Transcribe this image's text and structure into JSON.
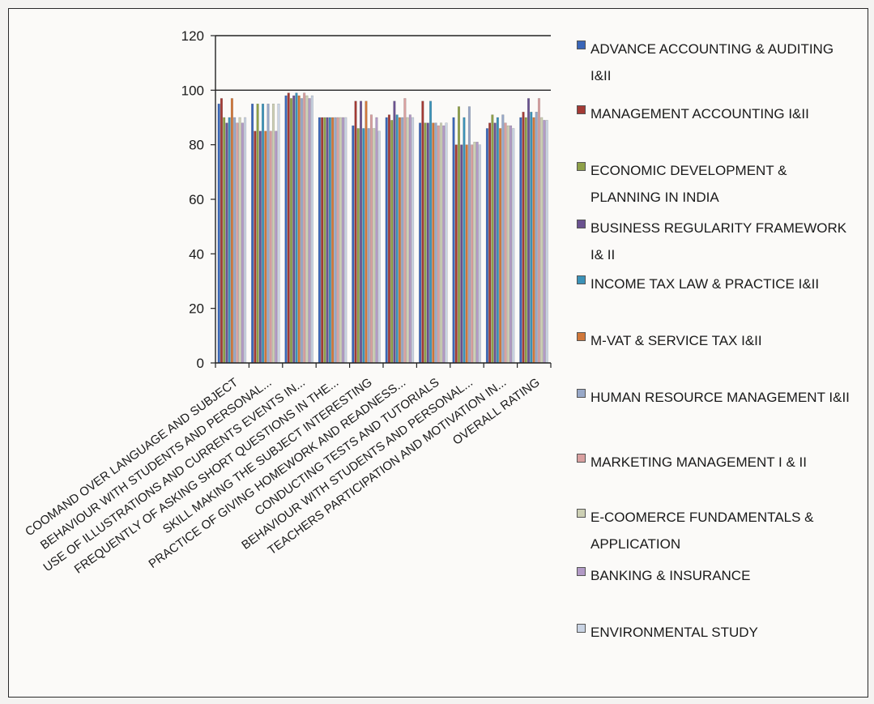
{
  "chart_data": {
    "type": "bar",
    "ylim": [
      0,
      120
    ],
    "yticks": [
      0,
      20,
      40,
      60,
      80,
      100,
      120
    ],
    "grid": "horizontal lines at 100 and 120",
    "legend_position": "right",
    "categories": [
      "COOMAND OVER LANGUAGE AND SUBJECT",
      "BEHAVIOUR WITH STUDENTS AND PERSONAL...",
      "USE OF ILLUSTRATIONS AND CURRENTS EVENTS IN...",
      "FREQUENTLY OF ASKING SHORT QUESTIONS IN THE...",
      "SKILL MAKING THE SUBJECT INTERESTING",
      "PRACTICE OF GIVING HOMEWORK AND READNESS...",
      "CONDUCTING TESTS AND TUTORIALS",
      "BEHAVIOUR WITH STUDENTS AND PERSONAL...",
      "TEACHERS PARTICIPATION AND MOTIVATION IN...",
      "OVERALL RATING"
    ],
    "series": [
      {
        "name": "ADVANCE ACCOUNTING & AUDITING I&II",
        "color": "#3a66b8",
        "values": [
          95,
          95,
          98,
          90,
          87,
          90,
          88,
          90,
          86,
          90
        ]
      },
      {
        "name": "MANAGEMENT ACCOUNTING I&II",
        "color": "#a33a35",
        "values": [
          97,
          85,
          99,
          90,
          96,
          91,
          96,
          80,
          88,
          92
        ]
      },
      {
        "name": "ECONOMIC DEVELOPMENT & PLANNING IN INDIA",
        "color": "#8ea048",
        "values": [
          90,
          95,
          97,
          90,
          86,
          89,
          88,
          94,
          91,
          90
        ]
      },
      {
        "name": "BUSINESS REGULARITY FRAMEWORK I& II",
        "color": "#6a5290",
        "values": [
          88,
          85,
          98,
          90,
          96,
          96,
          88,
          80,
          88,
          97
        ]
      },
      {
        "name": "INCOME TAX LAW & PRACTICE I&II",
        "color": "#3b92b8",
        "values": [
          90,
          95,
          99,
          90,
          86,
          91,
          96,
          90,
          90,
          92
        ]
      },
      {
        "name": "M-VAT & SERVICE TAX I&II",
        "color": "#d0773a",
        "values": [
          97,
          85,
          98,
          90,
          96,
          90,
          88,
          80,
          86,
          90
        ]
      },
      {
        "name": "HUMAN RESOURCE MANAGEMENT I&II",
        "color": "#98a8c8",
        "values": [
          90,
          95,
          97,
          90,
          86,
          90,
          88,
          94,
          91,
          92
        ]
      },
      {
        "name": "MARKETING MANAGEMENT I & II",
        "color": "#d9a0a0",
        "values": [
          88,
          85,
          99,
          90,
          91,
          97,
          87,
          80,
          88,
          97
        ]
      },
      {
        "name": "E-COOMERCE FUNDAMENTALS & APPLICATION",
        "color": "#cdd0b4",
        "values": [
          90,
          95,
          98,
          90,
          86,
          90,
          88,
          81,
          87,
          90
        ]
      },
      {
        "name": "BANKING & INSURANCE",
        "color": "#b29ac6",
        "values": [
          88,
          85,
          97,
          90,
          90,
          91,
          87,
          81,
          87,
          89
        ]
      },
      {
        "name": "ENVIRONMENTAL STUDY",
        "color": "#c9d3e3",
        "values": [
          90,
          95,
          98,
          90,
          85,
          90,
          88,
          80,
          86,
          89
        ]
      }
    ]
  }
}
